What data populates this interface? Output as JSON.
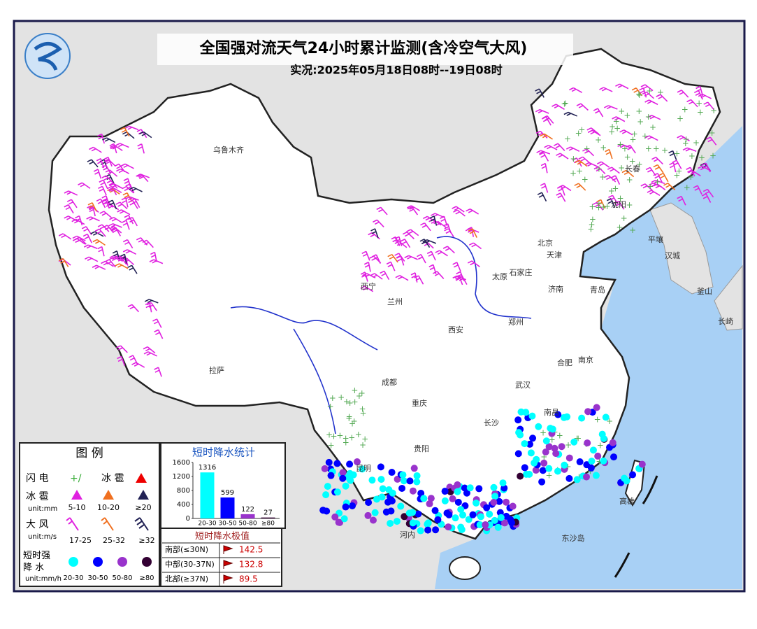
{
  "title": "全国强对流天气24小时累计监测(含冷空气大风)",
  "subtitle": "实况:2025年05月18日08时--19日08时",
  "cities": [
    "乌鲁木齐",
    "拉萨",
    "西宁",
    "兰州",
    "成都",
    "重庆",
    "贵阳",
    "昆明",
    "西安",
    "太原",
    "石家庄",
    "北京",
    "天津",
    "济南",
    "郑州",
    "武汉",
    "长沙",
    "南昌",
    "合肥",
    "南京",
    "长春",
    "沈阳",
    "青岛",
    "平壤",
    "汉城",
    "釜山",
    "长崎",
    "河内",
    "东沙岛",
    "高雄"
  ],
  "legend": {
    "title": "图 例",
    "lightning": "闪 电",
    "hail": "冰 雹",
    "hail_unit_name": "冰 雹",
    "hail_unit": "unit:mm",
    "hail_classes": [
      "5-10",
      "10-20",
      "≥20"
    ],
    "wind": "大 风",
    "wind_unit": "unit:m/s",
    "wind_classes": [
      "17-25",
      "25-32",
      "≥32"
    ],
    "rain": "短时强降 水",
    "rain_unit": "unit:mm/h",
    "rain_classes": [
      "20-30",
      "30-50",
      "50-80",
      "≥80"
    ]
  },
  "chart_data": {
    "type": "bar",
    "title": "短时降水统计",
    "categories": [
      "20-30",
      "30-50",
      "50-80",
      "≥80"
    ],
    "values": [
      1316,
      599,
      122,
      27
    ],
    "colors": [
      "#00ffff",
      "#0000ff",
      "#9933cc",
      "#330033"
    ],
    "ylim": [
      0,
      1600
    ],
    "yticks": [
      0,
      400,
      800,
      1200,
      1600
    ]
  },
  "extremes": {
    "title": "短时降水极值",
    "rows": [
      [
        "南部(≤30N)",
        142.5
      ],
      [
        "中部(30-37N)",
        132.8
      ],
      [
        "北部(≥37N)",
        89.5
      ]
    ]
  }
}
